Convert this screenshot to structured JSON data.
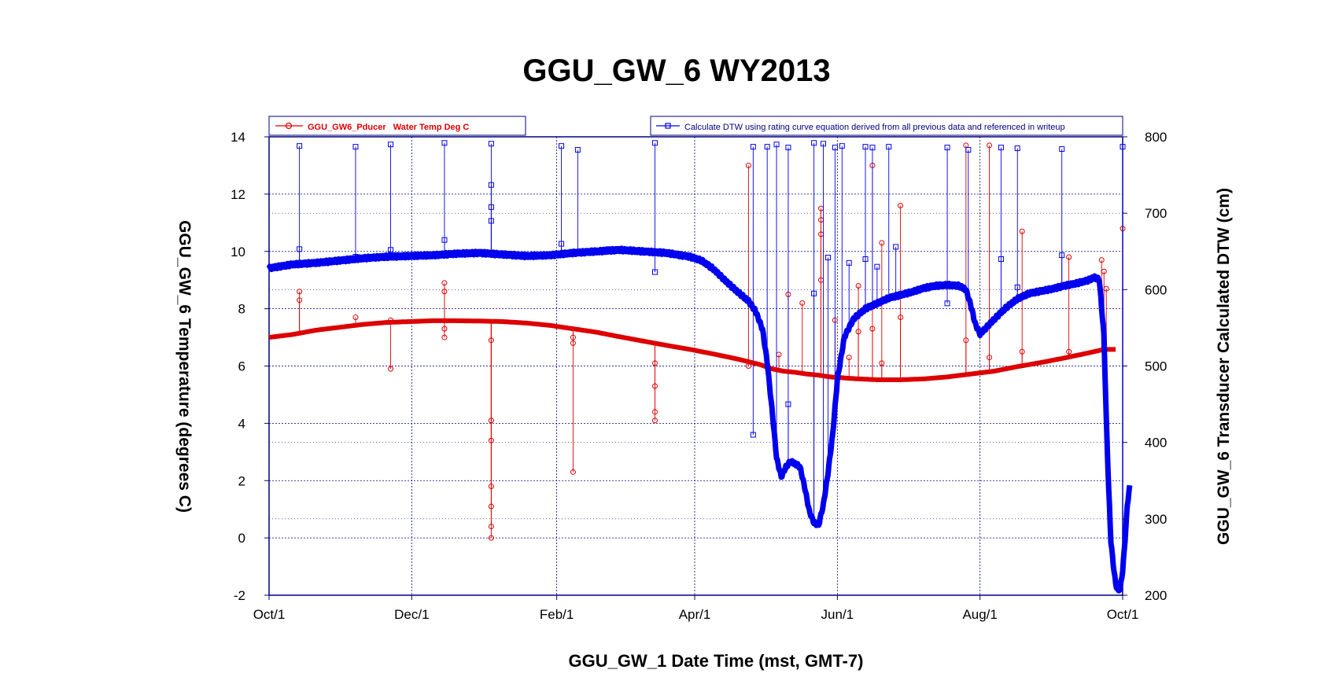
{
  "chart_data": {
    "type": "line",
    "title": "GGU_GW_6 WY2013",
    "xlabel": "GGU_GW_1 Date Time (mst, GMT-7)",
    "ylabel_left": "GGU_GW_6 Temperature (degrees C)",
    "ylabel_right": "GGU_GW_6 Transducer Calculated DTW (cm)",
    "x_ticks": [
      "Oct/1",
      "Dec/1",
      "Feb/1",
      "Apr/1",
      "Jun/1",
      "Aug/1",
      "Oct/1"
    ],
    "x_tick_days": [
      0,
      61,
      123,
      182,
      243,
      304,
      365
    ],
    "y_left_ticks": [
      -2,
      0,
      2,
      4,
      6,
      8,
      10,
      12,
      14
    ],
    "y_left_range": [
      -2,
      14
    ],
    "y_right_ticks": [
      200,
      300,
      400,
      500,
      600,
      700,
      800
    ],
    "y_right_range": [
      200,
      800
    ],
    "grid": true,
    "colors": {
      "temperature": "#dd0000",
      "dtw": "#0000ee",
      "frame": "#000080",
      "grid": "#000080"
    },
    "series": [
      {
        "name": "GGU_GW6_Pducer   Water Temp Deg C",
        "axis": "left",
        "color": "#dd0000",
        "marker": "circle",
        "legend_position": "top-left",
        "points": [
          [
            0,
            7.0
          ],
          [
            10,
            7.1
          ],
          [
            20,
            7.25
          ],
          [
            30,
            7.35
          ],
          [
            40,
            7.45
          ],
          [
            50,
            7.52
          ],
          [
            60,
            7.55
          ],
          [
            70,
            7.58
          ],
          [
            80,
            7.58
          ],
          [
            90,
            7.57
          ],
          [
            100,
            7.55
          ],
          [
            110,
            7.5
          ],
          [
            120,
            7.42
          ],
          [
            130,
            7.3
          ],
          [
            140,
            7.18
          ],
          [
            150,
            7.02
          ],
          [
            160,
            6.87
          ],
          [
            170,
            6.72
          ],
          [
            180,
            6.58
          ],
          [
            190,
            6.42
          ],
          [
            200,
            6.25
          ],
          [
            210,
            6.05
          ],
          [
            215,
            5.9
          ],
          [
            220,
            5.82
          ],
          [
            225,
            5.78
          ],
          [
            230,
            5.72
          ],
          [
            235,
            5.68
          ],
          [
            240,
            5.62
          ],
          [
            250,
            5.56
          ],
          [
            260,
            5.52
          ],
          [
            270,
            5.52
          ],
          [
            280,
            5.55
          ],
          [
            290,
            5.62
          ],
          [
            300,
            5.72
          ],
          [
            310,
            5.82
          ],
          [
            320,
            5.98
          ],
          [
            330,
            6.12
          ],
          [
            340,
            6.28
          ],
          [
            350,
            6.45
          ],
          [
            357,
            6.58
          ],
          [
            362,
            6.58
          ]
        ]
      },
      {
        "name": "Calculate DTW using rating curve equation derived from all previous data and referenced in writeup",
        "axis": "right",
        "color": "#0000ee",
        "marker": "square",
        "legend_position": "top-right",
        "points": [
          [
            0,
            628
          ],
          [
            10,
            633
          ],
          [
            20,
            635
          ],
          [
            30,
            638
          ],
          [
            40,
            641
          ],
          [
            50,
            643
          ],
          [
            60,
            644
          ],
          [
            70,
            645
          ],
          [
            80,
            647
          ],
          [
            90,
            648
          ],
          [
            100,
            646
          ],
          [
            110,
            644
          ],
          [
            120,
            645
          ],
          [
            130,
            648
          ],
          [
            140,
            650
          ],
          [
            150,
            652
          ],
          [
            160,
            650
          ],
          [
            170,
            648
          ],
          [
            180,
            643
          ],
          [
            185,
            638
          ],
          [
            190,
            627
          ],
          [
            195,
            612
          ],
          [
            200,
            598
          ],
          [
            205,
            585
          ],
          [
            208,
            572
          ],
          [
            211,
            548
          ],
          [
            213,
            505
          ],
          [
            215,
            445
          ],
          [
            217,
            380
          ],
          [
            219,
            355
          ],
          [
            221,
            368
          ],
          [
            223,
            375
          ],
          [
            225,
            372
          ],
          [
            227,
            368
          ],
          [
            229,
            342
          ],
          [
            231,
            310
          ],
          [
            233,
            295
          ],
          [
            235,
            292
          ],
          [
            237,
            318
          ],
          [
            239,
            360
          ],
          [
            241,
            410
          ],
          [
            243,
            482
          ],
          [
            246,
            538
          ],
          [
            250,
            562
          ],
          [
            255,
            575
          ],
          [
            260,
            582
          ],
          [
            265,
            589
          ],
          [
            270,
            593
          ],
          [
            275,
            597
          ],
          [
            280,
            602
          ],
          [
            285,
            605
          ],
          [
            290,
            606
          ],
          [
            295,
            605
          ],
          [
            298,
            600
          ],
          [
            300,
            580
          ],
          [
            302,
            555
          ],
          [
            304,
            542
          ],
          [
            306,
            548
          ],
          [
            310,
            561
          ],
          [
            315,
            576
          ],
          [
            320,
            588
          ],
          [
            325,
            595
          ],
          [
            330,
            598
          ],
          [
            335,
            601
          ],
          [
            340,
            605
          ],
          [
            345,
            608
          ],
          [
            350,
            612
          ],
          [
            353,
            616
          ],
          [
            355,
            613
          ],
          [
            357,
            540
          ],
          [
            358,
            430
          ],
          [
            359,
            340
          ],
          [
            360,
            270
          ],
          [
            361,
            240
          ],
          [
            362,
            215
          ],
          [
            363,
            205
          ],
          [
            364,
            210
          ],
          [
            365,
            232
          ],
          [
            366,
            272
          ],
          [
            367,
            318
          ],
          [
            368,
            342
          ]
        ]
      }
    ],
    "temp_spikes": [
      [
        13,
        8.6
      ],
      [
        13,
        8.3
      ],
      [
        37,
        7.7
      ],
      [
        52,
        5.9
      ],
      [
        52,
        7.6
      ],
      [
        75,
        8.9
      ],
      [
        75,
        8.6
      ],
      [
        75,
        7.0
      ],
      [
        75,
        7.3
      ],
      [
        95,
        6.9
      ],
      [
        95,
        4.1
      ],
      [
        95,
        3.4
      ],
      [
        95,
        1.8
      ],
      [
        95,
        1.1
      ],
      [
        95,
        0.4
      ],
      [
        95,
        0.0
      ],
      [
        130,
        7.0
      ],
      [
        130,
        6.8
      ],
      [
        130,
        2.3
      ],
      [
        165,
        6.1
      ],
      [
        165,
        5.3
      ],
      [
        165,
        4.4
      ],
      [
        165,
        4.1
      ],
      [
        205,
        13.0
      ],
      [
        205,
        6.0
      ],
      [
        218,
        6.4
      ],
      [
        222,
        8.5
      ],
      [
        228,
        8.2
      ],
      [
        236,
        11.5
      ],
      [
        236,
        11.1
      ],
      [
        236,
        10.6
      ],
      [
        236,
        9.0
      ],
      [
        242,
        7.6
      ],
      [
        248,
        6.3
      ],
      [
        252,
        8.8
      ],
      [
        252,
        7.2
      ],
      [
        258,
        13.0
      ],
      [
        258,
        7.3
      ],
      [
        262,
        10.3
      ],
      [
        262,
        6.1
      ],
      [
        270,
        11.6
      ],
      [
        270,
        7.7
      ],
      [
        298,
        13.7
      ],
      [
        298,
        6.9
      ],
      [
        308,
        13.7
      ],
      [
        308,
        6.3
      ],
      [
        322,
        10.7
      ],
      [
        322,
        6.5
      ],
      [
        342,
        9.8
      ],
      [
        342,
        6.5
      ],
      [
        356,
        9.7
      ],
      [
        357,
        9.3
      ],
      [
        358,
        8.7
      ],
      [
        365,
        10.8
      ]
    ],
    "dtw_spikes": [
      [
        13,
        788
      ],
      [
        13,
        653
      ],
      [
        37,
        787
      ],
      [
        37,
        643
      ],
      [
        52,
        790
      ],
      [
        52,
        652
      ],
      [
        75,
        792
      ],
      [
        75,
        665
      ],
      [
        95,
        791
      ],
      [
        95,
        737
      ],
      [
        95,
        708
      ],
      [
        95,
        690
      ],
      [
        125,
        788
      ],
      [
        125,
        660
      ],
      [
        132,
        783
      ],
      [
        145,
        653
      ],
      [
        165,
        792
      ],
      [
        165,
        623
      ],
      [
        207,
        787
      ],
      [
        207,
        410
      ],
      [
        213,
        787
      ],
      [
        217,
        790
      ],
      [
        222,
        786
      ],
      [
        222,
        450
      ],
      [
        233,
        792
      ],
      [
        233,
        595
      ],
      [
        237,
        791
      ],
      [
        239,
        642
      ],
      [
        242,
        786
      ],
      [
        245,
        788
      ],
      [
        248,
        635
      ],
      [
        255,
        787
      ],
      [
        255,
        640
      ],
      [
        258,
        786
      ],
      [
        260,
        630
      ],
      [
        265,
        787
      ],
      [
        268,
        656
      ],
      [
        290,
        786
      ],
      [
        290,
        582
      ],
      [
        299,
        783
      ],
      [
        313,
        786
      ],
      [
        313,
        640
      ],
      [
        320,
        785
      ],
      [
        320,
        603
      ],
      [
        339,
        784
      ],
      [
        339,
        645
      ],
      [
        365,
        787
      ]
    ]
  }
}
